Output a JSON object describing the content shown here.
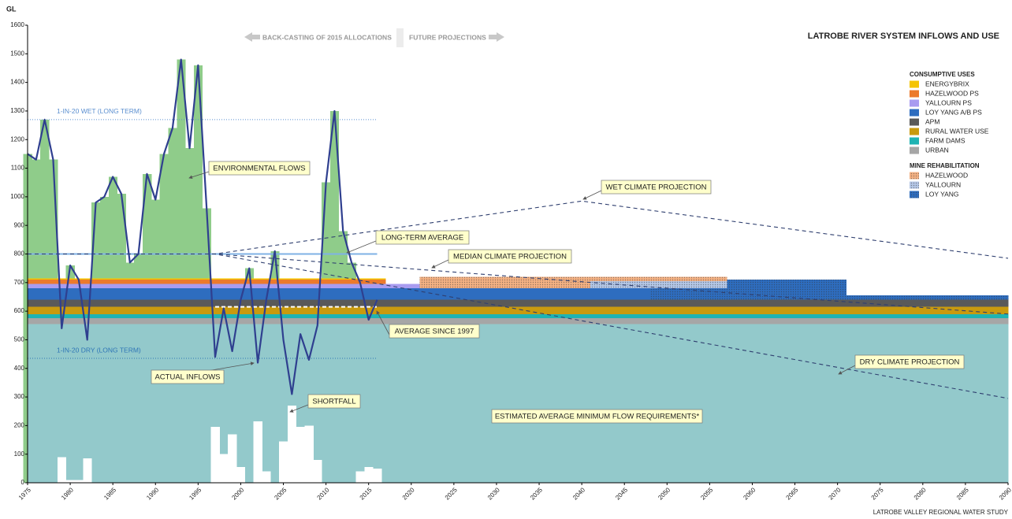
{
  "chart_data": {
    "type": "area",
    "title": "LATROBE RIVER SYSTEM INFLOWS AND USE",
    "y_label": "GL",
    "note_left": "BACK-CASTING OF 2015 ALLOCATIONS",
    "note_right": "FUTURE PROJECTIONS",
    "source": "LATROBE VALLEY REGIONAL WATER STUDY",
    "xlim": [
      1975,
      2090
    ],
    "xticks": [
      1975,
      1980,
      1985,
      1990,
      1995,
      2000,
      2005,
      2010,
      2015,
      2020,
      2025,
      2030,
      2035,
      2040,
      2045,
      2050,
      2055,
      2060,
      2065,
      2070,
      2075,
      2080,
      2085,
      2090
    ],
    "ylim": [
      0,
      1600
    ],
    "yticks": [
      0,
      100,
      200,
      300,
      400,
      500,
      600,
      700,
      800,
      900,
      1000,
      1100,
      1200,
      1300,
      1400,
      1500,
      1600
    ],
    "inflows": {
      "name": "ACTUAL INFLOWS",
      "color": "#2f3f8f",
      "x": [
        1975,
        1976,
        1977,
        1978,
        1979,
        1980,
        1981,
        1982,
        1983,
        1984,
        1985,
        1986,
        1987,
        1988,
        1989,
        1990,
        1991,
        1992,
        1993,
        1994,
        1995,
        1996,
        1997,
        1998,
        1999,
        2000,
        2001,
        2002,
        2003,
        2004,
        2005,
        2006,
        2007,
        2008,
        2009,
        2010,
        2011,
        2012,
        2013,
        2014,
        2015,
        2016
      ],
      "values": [
        1150,
        1130,
        1270,
        1130,
        540,
        760,
        710,
        500,
        980,
        1000,
        1070,
        1010,
        770,
        800,
        1080,
        990,
        1150,
        1240,
        1480,
        1170,
        1460,
        960,
        440,
        610,
        460,
        640,
        750,
        420,
        640,
        810,
        500,
        310,
        520,
        430,
        550,
        1050,
        1300,
        880,
        770,
        700,
        570,
        640
      ]
    },
    "environmental_flows": {
      "name": "ENVIRONMENTAL FLOWS",
      "color": "#8fcc8a"
    },
    "shortfall": {
      "name": "SHORTFALL",
      "color": "#ffffff",
      "x": [
        1979,
        1980,
        1981,
        1982,
        1997,
        1998,
        1999,
        2000,
        2002,
        2003,
        2005,
        2006,
        2007,
        2008,
        2009,
        2014,
        2015,
        2016
      ],
      "values": [
        90,
        10,
        10,
        85,
        195,
        100,
        170,
        55,
        215,
        40,
        145,
        270,
        195,
        200,
        80,
        40,
        55,
        50
      ]
    },
    "stack_x": [
      1975,
      2017,
      2021,
      2041,
      2048,
      2057,
      2071
    ],
    "minimum_flow": {
      "name": "ESTIMATED AVERAGE MINIMUM FLOW REQUIREMENTS*",
      "color": "#93c9cb",
      "values": [
        555,
        555,
        555,
        555,
        555,
        555,
        555
      ]
    },
    "consumptive_uses": {
      "title": "CONSUMPTIVE USES",
      "series": [
        {
          "name": "ENERGYBRIX",
          "color": "#f5c400",
          "values": [
            5,
            0,
            0,
            0,
            0,
            0,
            0
          ]
        },
        {
          "name": "HAZELWOOD PS",
          "color": "#ec7a2c",
          "values": [
            15,
            0,
            0,
            0,
            0,
            0,
            0
          ]
        },
        {
          "name": "YALLOURN PS",
          "color": "#a99cf0",
          "values": [
            15,
            15,
            0,
            0,
            0,
            0,
            0
          ]
        },
        {
          "name": "LOY YANG A/B PS",
          "color": "#2e6dbf",
          "values": [
            40,
            40,
            40,
            40,
            0,
            0,
            0
          ]
        },
        {
          "name": "APM",
          "color": "#595959",
          "values": [
            25,
            25,
            25,
            25,
            25,
            25,
            25
          ]
        },
        {
          "name": "RURAL WATER USE",
          "color": "#c99a0e",
          "values": [
            25,
            25,
            25,
            25,
            25,
            25,
            25
          ]
        },
        {
          "name": "FARM DAMS",
          "color": "#1fb3b3",
          "values": [
            15,
            15,
            15,
            15,
            15,
            15,
            15
          ]
        },
        {
          "name": "URBAN",
          "color": "#a6a6a6",
          "values": [
            20,
            20,
            20,
            20,
            20,
            20,
            20
          ]
        }
      ]
    },
    "mine_rehabilitation": {
      "title": "MINE REHABILITATION",
      "series": [
        {
          "name": "HAZELWOOD",
          "color": "#f4b183",
          "values": [
            0,
            0,
            40,
            15,
            15,
            0,
            0
          ]
        },
        {
          "name": "YALLOURN",
          "color": "#b4c7e7",
          "values": [
            0,
            0,
            0,
            25,
            25,
            0,
            0
          ]
        },
        {
          "name": "LOY YANG",
          "color": "#2e6dbf",
          "values": [
            0,
            0,
            0,
            0,
            40,
            70,
            15
          ]
        }
      ]
    },
    "reference_lines": [
      {
        "name": "1-IN-20 WET (LONG TERM)",
        "color": "#5b8fd0",
        "value": 1270,
        "x": [
          1975,
          2016
        ]
      },
      {
        "name": "1-IN-20 DRY (LONG TERM)",
        "color": "#2e75b6",
        "value": 435,
        "x": [
          1975,
          2016
        ]
      }
    ],
    "long_term_average": {
      "name": "LONG-TERM AVERAGE",
      "color": "#7fb2e5",
      "value": 800,
      "x": [
        1975,
        2016
      ]
    },
    "average_since_1997": {
      "name": "AVERAGE SINCE 1997",
      "color": "#ffffff",
      "value": 615,
      "x": [
        1997,
        2016
      ]
    },
    "projections": [
      {
        "name": "WET CLIMATE PROJECTION",
        "color": "#2f3f6f",
        "x": [
          1975,
          1997,
          2040,
          2090
        ],
        "values": [
          800,
          800,
          985,
          785
        ]
      },
      {
        "name": "MEDIAN CLIMATE PROJECTION",
        "color": "#2f3f6f",
        "x": [
          1975,
          1997,
          2090
        ],
        "values": [
          800,
          800,
          590
        ]
      },
      {
        "name": "DRY CLIMATE PROJECTION",
        "color": "#2f3f6f",
        "x": [
          1975,
          1997,
          2090
        ],
        "values": [
          800,
          800,
          295
        ]
      }
    ]
  }
}
